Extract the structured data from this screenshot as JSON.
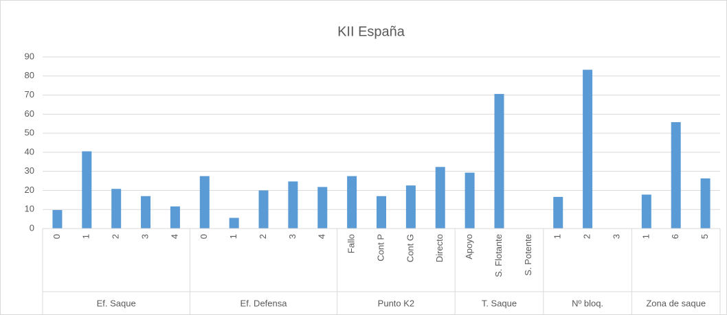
{
  "chart_data": {
    "type": "bar",
    "title": "KII España",
    "color": "#5b9bd5",
    "ylim": [
      0,
      90
    ],
    "yticks": [
      0,
      10,
      20,
      30,
      40,
      50,
      60,
      70,
      80,
      90
    ],
    "grid": true,
    "groups": [
      {
        "name": "Ef. Saque",
        "categories": [
          "0",
          "1",
          "2",
          "3",
          "4"
        ],
        "values": [
          9.7,
          40.5,
          20.8,
          17,
          11.6
        ]
      },
      {
        "name": "Ef. Defensa",
        "categories": [
          "0",
          "1",
          "2",
          "3",
          "4"
        ],
        "values": [
          27.5,
          5.6,
          20,
          24.7,
          21.8
        ]
      },
      {
        "name": "Punto K2",
        "categories": [
          "Fallo",
          "Cont P",
          "Cont G",
          "Directo"
        ],
        "values": [
          27.5,
          17,
          22.6,
          32.3
        ]
      },
      {
        "name": "T. Saque",
        "categories": [
          "Apoyo",
          "S. Flotante",
          "S. Potente"
        ],
        "values": [
          29.3,
          70.6,
          0
        ]
      },
      {
        "name": "Nº bloq.",
        "categories": [
          "1",
          "2",
          "3"
        ],
        "values": [
          16.6,
          83.3,
          0
        ]
      },
      {
        "name": "Zona de saque",
        "categories": [
          "1",
          "6",
          "5"
        ],
        "values": [
          17.8,
          55.8,
          26.3
        ]
      }
    ]
  }
}
